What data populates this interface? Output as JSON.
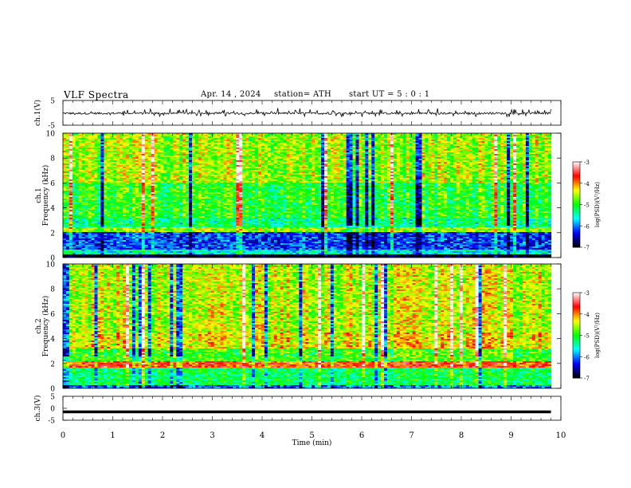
{
  "header": {
    "title": "VLF  Spectra",
    "date": "Apr. 14 , 2024",
    "station": "station= ATH",
    "start_ut": "start  UT  =    5  : 0   : 1"
  },
  "chart_data": [
    {
      "type": "line",
      "panel": "ch1-waveform",
      "ylabel": "ch.1(V)",
      "ylim": [
        -5,
        5
      ],
      "yticks": [
        "5",
        "-5"
      ],
      "xlim": [
        0,
        10
      ],
      "x_extent": [
        0,
        9.8
      ],
      "baseline_v": -0.2,
      "noise_amplitude_v": 0.4,
      "spike_amplitude_v": 1.6,
      "color": "#000000"
    },
    {
      "type": "heatmap",
      "panel": "ch1-spectrogram",
      "ylabel_channel": "ch.1",
      "ylabel": "Frequency  (kHz)",
      "ylim": [
        0,
        10
      ],
      "yticks": [
        "0",
        "2",
        "4",
        "6",
        "8",
        "10"
      ],
      "xlim": [
        0,
        10
      ],
      "x_extent": [
        0,
        9.8
      ],
      "colorbar": {
        "label": "log(PSD)(V²/Hz)",
        "range": [
          -7,
          -3
        ],
        "ticks": [
          "-3",
          "-4",
          "-5",
          "-6",
          "-7"
        ],
        "colors": [
          "#000000",
          "#0000ff",
          "#00ffff",
          "#00ff00",
          "#ffff00",
          "#ff0000",
          "#ffffff"
        ]
      },
      "bands": [
        {
          "f_min": 0.0,
          "f_max": 0.25,
          "level": -7.0
        },
        {
          "f_min": 0.25,
          "f_max": 0.7,
          "level": -5.6
        },
        {
          "f_min": 0.7,
          "f_max": 2.0,
          "level": -6.2
        },
        {
          "f_min": 2.0,
          "f_max": 2.4,
          "level": -4.6
        },
        {
          "f_min": 2.4,
          "f_max": 3.2,
          "level": -5.3
        },
        {
          "f_min": 3.2,
          "f_max": 6.0,
          "level": -5.0
        },
        {
          "f_min": 6.0,
          "f_max": 10.0,
          "level": -4.6
        }
      ]
    },
    {
      "type": "heatmap",
      "panel": "ch2-spectrogram",
      "ylabel_channel": "ch.2",
      "ylabel": "Frequency  (kHz)",
      "ylim": [
        0,
        10
      ],
      "yticks": [
        "0",
        "2",
        "4",
        "6",
        "8",
        "10"
      ],
      "xlim": [
        0,
        10
      ],
      "x_extent": [
        0,
        9.8
      ],
      "colorbar": {
        "label": "log(PSD)(V²/Hz)",
        "range": [
          -7,
          -3
        ],
        "ticks": [
          "-3",
          "-4",
          "-5",
          "-6",
          "-7"
        ],
        "colors": [
          "#000000",
          "#0000ff",
          "#00ffff",
          "#00ff00",
          "#ffff00",
          "#ff0000",
          "#ffffff"
        ]
      },
      "bands": [
        {
          "f_min": 0.0,
          "f_max": 0.25,
          "level": -6.0
        },
        {
          "f_min": 0.25,
          "f_max": 1.7,
          "level": -5.2
        },
        {
          "f_min": 1.7,
          "f_max": 2.2,
          "level": -3.8
        },
        {
          "f_min": 2.2,
          "f_max": 3.2,
          "level": -4.9
        },
        {
          "f_min": 3.2,
          "f_max": 4.5,
          "level": -4.3
        },
        {
          "f_min": 4.5,
          "f_max": 10.0,
          "level": -4.5
        }
      ]
    },
    {
      "type": "line",
      "panel": "ch3-waveform",
      "ylabel": "ch.3(V)",
      "ylim": [
        -5,
        5
      ],
      "yticks": [
        "5",
        "0",
        "-5"
      ],
      "xlim": [
        0,
        10
      ],
      "x_extent": [
        0,
        9.8
      ],
      "baseline_v": -1.5,
      "color": "#000000"
    }
  ],
  "xaxis": {
    "label": "Time  (min)",
    "ticks": [
      "0",
      "1",
      "2",
      "3",
      "4",
      "5",
      "6",
      "7",
      "8",
      "9",
      "10"
    ]
  }
}
